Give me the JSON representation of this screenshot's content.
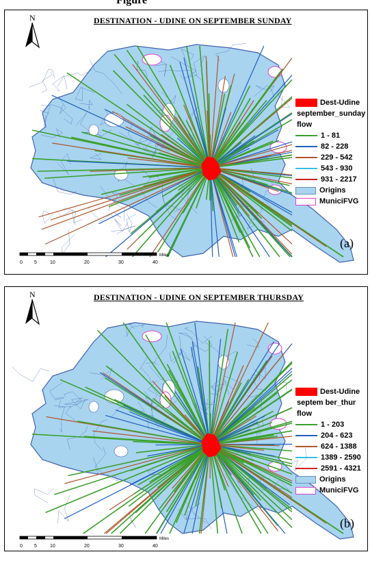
{
  "page": {
    "top_caption": "Figure"
  },
  "panels": [
    {
      "title": "DESTINATION - UDINE ON SEPTEMBER SUNDAY",
      "tag": "(a)",
      "north_label": "N",
      "legend": {
        "dest_label": "Dest-Udine",
        "layer_label": "september_sunday",
        "field_label": "flow",
        "classes": [
          {
            "range": "1 - 81",
            "color": "#3aa02a"
          },
          {
            "range": "82 - 228",
            "color": "#1f5fc0"
          },
          {
            "range": "229 - 542",
            "color": "#b0552a"
          },
          {
            "range": "543 - 930",
            "color": "#30c0e8"
          },
          {
            "range": "931 - 2217",
            "color": "#d02020"
          }
        ],
        "origins_label": "Origins",
        "munic_label": "MuniciFVG"
      },
      "scale": {
        "ticks": [
          "0",
          "5",
          "10",
          "20",
          "30",
          "40"
        ],
        "unit": "Miles"
      }
    },
    {
      "title": "DESTINATION - UDINE ON SEPTEMBER THURSDAY",
      "tag": "(b)",
      "north_label": "N",
      "legend": {
        "dest_label": "Dest-Udine",
        "layer_label": "septem ber_thur",
        "field_label": "flow",
        "classes": [
          {
            "range": "1 - 203",
            "color": "#3aa02a"
          },
          {
            "range": "204 - 623",
            "color": "#1f5fc0"
          },
          {
            "range": "624 - 1388",
            "color": "#b0552a"
          },
          {
            "range": "1389 - 2590",
            "color": "#30c0e8"
          },
          {
            "range": "2591 - 4321",
            "color": "#d02020"
          }
        ],
        "origins_label": "Origins",
        "munic_label": "MuniciFVG"
      },
      "scale": {
        "ticks": [
          "0",
          "5",
          "10",
          "20",
          "30",
          "40"
        ],
        "unit": "Miles"
      }
    }
  ],
  "colors": {
    "region_fill": "#a8d4ef",
    "region_stroke": "#4060b0",
    "municipality_stroke": "#e040c8",
    "destination_fill": "#ff0000",
    "flow_minor": "#3aa02a",
    "flow_mid": "#1f5fc0",
    "flow_high": "#b0552a"
  }
}
